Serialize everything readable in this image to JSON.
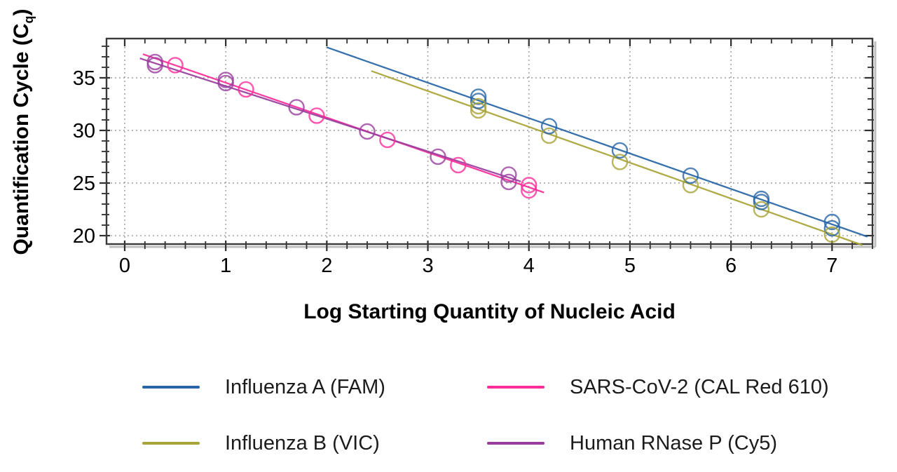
{
  "figure": {
    "background": "#ffffff",
    "grid_color": "#999999",
    "axis_color": "#3a3a3a",
    "axis_shadow_color": "#bfbfbf",
    "tick_label_color": "#000000"
  },
  "chart_data": {
    "type": "scatter",
    "title": "",
    "xlabel": "Log Starting Quantity of Nucleic Acid",
    "ylabel": "Quantification Cycle (Cq)",
    "ylabel_parts": {
      "prefix": "Quantification Cycle (C",
      "subscript": "q",
      "suffix": ")"
    },
    "xlim": [
      -0.18,
      7.4
    ],
    "ylim": [
      19.2,
      38.73
    ],
    "x_major_ticks": [
      0,
      1,
      2,
      3,
      4,
      5,
      6,
      7
    ],
    "x_minor_step": 0.2,
    "y_major_ticks": [
      20,
      25,
      30,
      35
    ],
    "y_minor_step": 1,
    "grid": "dotted",
    "legend_position": "bottom",
    "marker": "open-circle",
    "series": [
      {
        "name": "Influenza A (FAM)",
        "color": "#2765a6",
        "points": [
          [
            3.5,
            33.2
          ],
          [
            3.5,
            32.8
          ],
          [
            4.2,
            30.4
          ],
          [
            4.9,
            28.1
          ],
          [
            5.6,
            25.7
          ],
          [
            6.3,
            23.5
          ],
          [
            6.3,
            23.2
          ],
          [
            7.0,
            21.3
          ],
          [
            7.0,
            20.7
          ]
        ],
        "trendline": [
          [
            2.0,
            37.9
          ],
          [
            7.35,
            19.9
          ]
        ]
      },
      {
        "name": "Influenza B (VIC)",
        "color": "#a8a437",
        "points": [
          [
            3.5,
            32.3
          ],
          [
            3.5,
            31.9
          ],
          [
            4.2,
            29.5
          ],
          [
            4.9,
            27.0
          ],
          [
            5.6,
            24.8
          ],
          [
            6.3,
            22.5
          ],
          [
            7.0,
            20.1
          ]
        ],
        "trendline": [
          [
            2.44,
            35.65
          ],
          [
            7.3,
            19.1
          ]
        ]
      },
      {
        "name": "SARS-CoV-2 (CAL Red 610)",
        "color": "#fb2d9a",
        "points": [
          [
            0.5,
            36.2
          ],
          [
            1.2,
            33.9
          ],
          [
            1.9,
            31.4
          ],
          [
            2.6,
            29.1
          ],
          [
            3.3,
            26.7
          ],
          [
            4.0,
            24.8
          ],
          [
            4.0,
            24.3
          ]
        ],
        "trendline": [
          [
            0.18,
            37.25
          ],
          [
            4.15,
            24.1
          ]
        ]
      },
      {
        "name": "Human RNase P (Cy5)",
        "color": "#993d9e",
        "points": [
          [
            0.3,
            36.5
          ],
          [
            0.3,
            36.2
          ],
          [
            1.0,
            34.8
          ],
          [
            1.0,
            34.5
          ],
          [
            1.7,
            32.2
          ],
          [
            2.4,
            29.9
          ],
          [
            3.1,
            27.5
          ],
          [
            3.8,
            25.8
          ],
          [
            3.8,
            25.1
          ]
        ],
        "trendline": [
          [
            0.15,
            36.85
          ],
          [
            3.92,
            25.15
          ]
        ]
      }
    ],
    "legend": [
      {
        "label": "Influenza A (FAM)",
        "color": "#2765a6"
      },
      {
        "label": "Influenza B (VIC)",
        "color": "#a8a437"
      },
      {
        "label": "SARS-CoV-2 (CAL Red 610)",
        "color": "#fb2d9a"
      },
      {
        "label": "Human RNase P (Cy5)",
        "color": "#993d9e"
      }
    ]
  }
}
